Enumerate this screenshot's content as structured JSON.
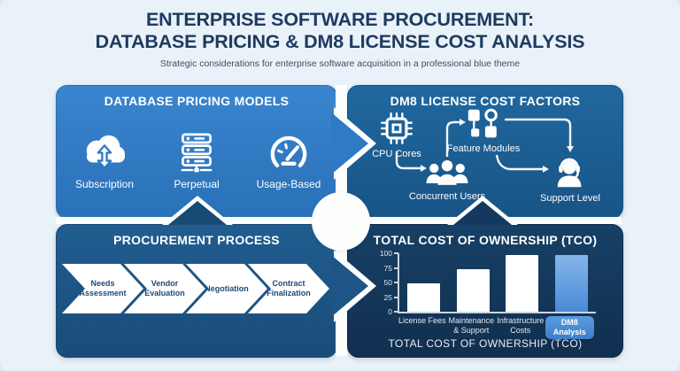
{
  "header": {
    "title_line1": "ENTERPRISE SOFTWARE PROCUREMENT:",
    "title_line2": "DATABASE PRICING & DM8 LICENSE COST ANALYSIS",
    "subtitle": "Strategic considerations for enterprise software acquisition in a professional blue theme"
  },
  "panels": {
    "pricing_models": {
      "title": "DATABASE PRICING MODELS",
      "items": [
        {
          "icon": "cloud-sync-icon",
          "label": "Subscription"
        },
        {
          "icon": "server-icon",
          "label": "Perpetual"
        },
        {
          "icon": "gauge-icon",
          "label": "Usage-Based"
        }
      ]
    },
    "license_factors": {
      "title": "DM8 LICENSE COST FACTORS",
      "nodes": [
        {
          "icon": "cpu-icon",
          "label": "CPU Cores"
        },
        {
          "icon": "feature-modules-icon",
          "label": "Feature Modules"
        },
        {
          "icon": "concurrent-users-icon",
          "label": "Concurrent Users"
        },
        {
          "icon": "support-headset-icon",
          "label": "Support Level"
        }
      ]
    },
    "procurement_process": {
      "title": "PROCUREMENT PROCESS",
      "steps": [
        "Needs Assessment",
        "Vendor Evaluation",
        "Negotiation",
        "Contract Finalization"
      ]
    },
    "tco": {
      "title": "TOTAL COST OF OWNERSHIP (TCO)",
      "axis_label": "TOTAL COST OF OWNERSHIP (TCO)"
    }
  },
  "chart_data": {
    "type": "bar",
    "categories": [
      "License Fees",
      "Maintenance & Support",
      "Infrastructure Costs",
      "DM8 Analysis"
    ],
    "values": [
      48,
      73,
      97,
      97
    ],
    "yticks": [
      0,
      25,
      50,
      75,
      100
    ],
    "ylim": [
      0,
      100
    ],
    "highlight_index": 3,
    "title": "TOTAL COST OF OWNERSHIP (TCO)",
    "xlabel": "TOTAL COST OF OWNERSHIP (TCO)",
    "grid": false,
    "legend": false,
    "bar_color": "#ffffff",
    "highlight_color": "#5b9ade"
  },
  "colors": {
    "background": "#e9f1f9",
    "panel_pricing": "#2f7ac4",
    "panel_license": "#1c5f94",
    "panel_process": "#1d5586",
    "panel_tco": "#153a60",
    "title_text": "#1e3a5f",
    "subtitle_text": "#3d4f63",
    "dm8_badge": "#4688d2",
    "step_text": "#1b4a77"
  }
}
